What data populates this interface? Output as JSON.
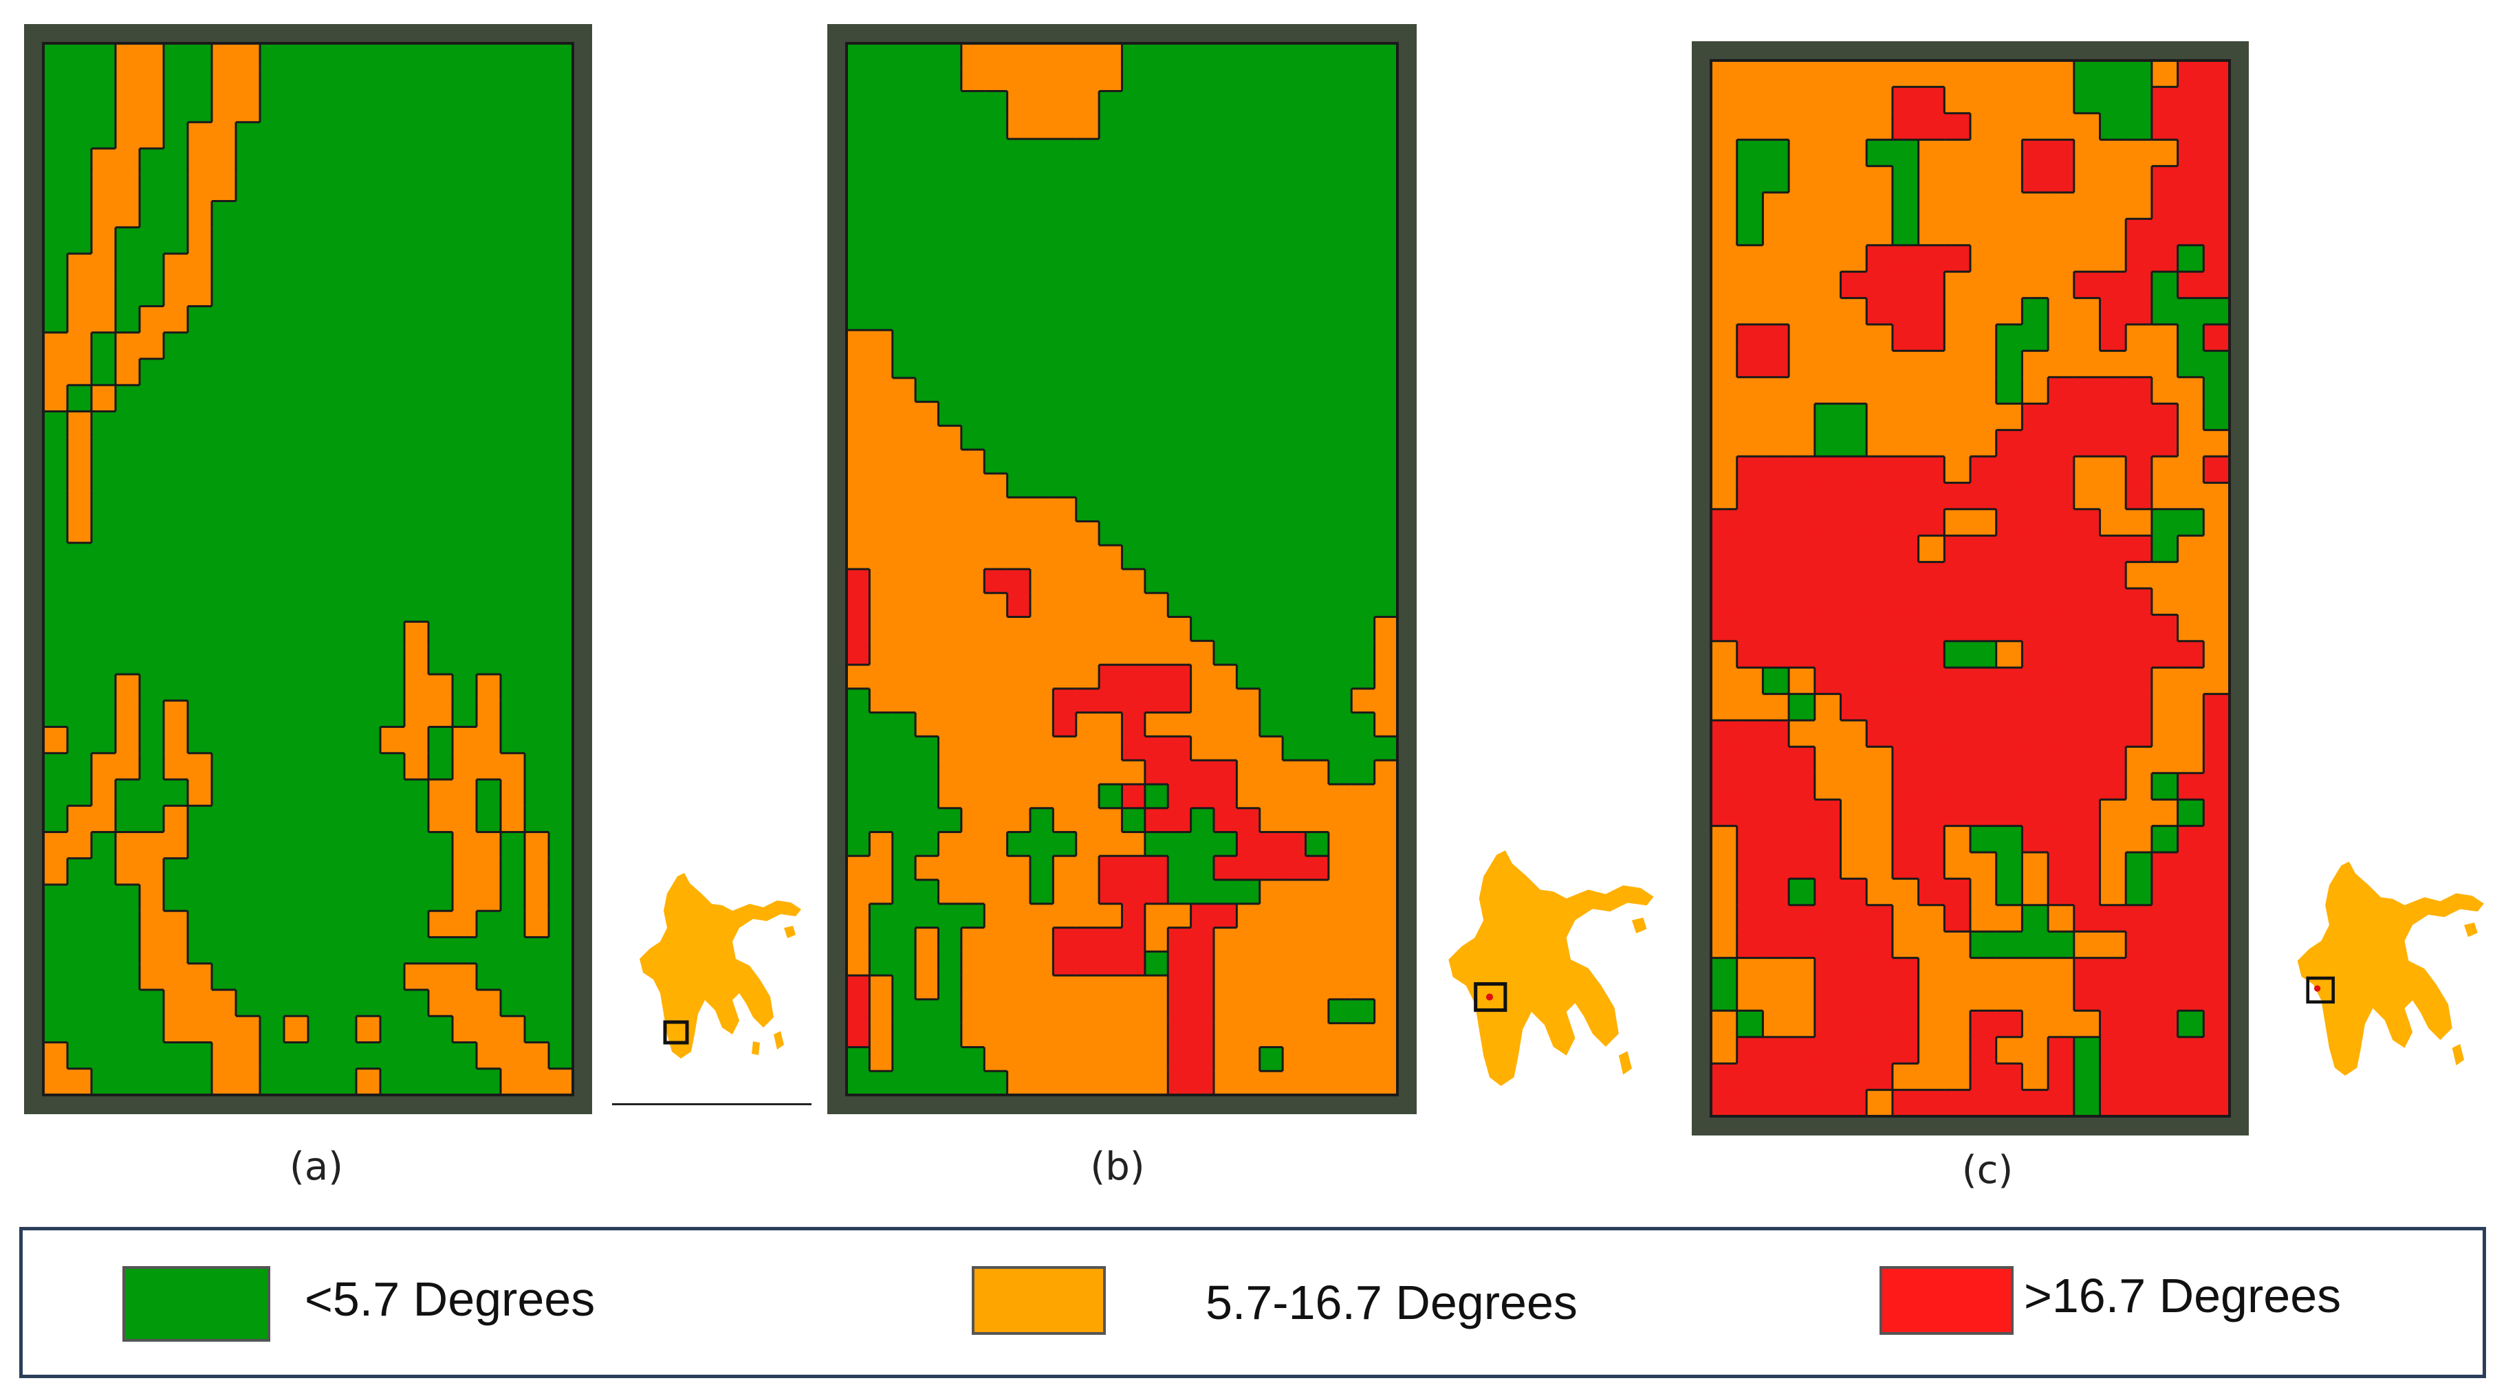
{
  "panels": [
    {
      "label": "(a)"
    },
    {
      "label": "(b)"
    },
    {
      "label": "(c)"
    }
  ],
  "legend": {
    "items": [
      {
        "label": "<5.7 Degrees",
        "color": "#009a0a"
      },
      {
        "label": "5.7-16.7 Degrees",
        "color": "#ffa500"
      },
      {
        "label": ">16.7 Degrees",
        "color": "#ff1a1a"
      }
    ]
  },
  "colors": {
    "green": "#009a0a",
    "orange": "#ff8a00",
    "red": "#f21b1b",
    "inset_island": "#ffb000",
    "inset_marker": "#e01010",
    "frame": "#3f4a3a"
  },
  "grids": [
    {
      "name": "slope-map-a",
      "cols": 22,
      "rows": 40,
      "rows_data": [
        "GGGOOGGOOGGGGGGGGGGGGG",
        "GGGOOGGOOGGGGGGGGGGGGG",
        "GGGOOGGOOGGGGGGGGGGGGG",
        "GGGOOGOOGGGGGGGGGGGGGG",
        "GGOOGGOOGGGGGGGGGGGGGG",
        "GGOOGGOOGGGGGGGGGGGGGG",
        "GGOOGGOGGGGGGGGGGGGGGG",
        "GGOGGGOGGGGGGGGGGGGGGG",
        "GOOGGOOGGGGGGGGGGGGGGG",
        "GOOGGOOGGGGGGGGGGGGGGG",
        "GOOGOOGGGGGGGGGGGGGGGG",
        "OOGOOGGGGGGGGGGGGGGGGG",
        "OOGOGGGGGGGGGGGGGGGGGG",
        "OGOGGGGGGGGGGGGGGGGGGG",
        "GOGGGGGGGGGGGGGGGGGGGG",
        "GOGGGGGGGGGGGGGGGGGGGG",
        "GOGGGGGGGGGGGGGGGGGGGG",
        "GOGGGGGGGGGGGGGGGGGGGG",
        "GOGGGGGGGGGGGGGGGGGGGG",
        "GGGGGGGGGGGGGGGGGGGGGG",
        "GGGGGGGGGGGGGGGGGGGGGG",
        "GGGGGGGGGGGGGGGGGGGGGG",
        "GGGGGGGGGGGGGGGOGGGGGG",
        "GGGGGGGGGGGGGGGOGGGGGG",
        "GGGOGGGGGGGGGGGOOGOGGG",
        "GGGOGOGGGGGGGGGOOGOGGG",
        "OGGOGOGGGGGGGGOOGOOGGG",
        "GGOOGOOGGGGGGGGOGOOOGG",
        "GGOGGGOGGGGGGGGGOOGOGG",
        "GOOGGOGGGGGGGGGGOOGOGG",
        "OOGOOOGGGGGGGGGGGOOGOG",
        "OGGOOGGGGGGGGGGGGOOGOG",
        "GGGGOGGGGGGGGGGGGOOGOG",
        "GGGGOOGGGGGGGGGGOOGGOG",
        "GGGGOOGGGGGGGGGGGGGGGG",
        "GGGGOOOGGGGGGGGOOOGGGG",
        "GGGGGOOOGGGGGGGGOOOGGG",
        "GGGGGOOOOGOGGOGGGOOOGG",
        "OGGGGGGOOGGGGGGGGGOOOG",
        "OOGGGGGOOGGGGOGGGGGOOO"
      ]
    },
    {
      "name": "slope-map-b",
      "cols": 24,
      "rows": 44,
      "rows_data": [
        "GGGGGOOOOOOOGGGGGGGGGGGG",
        "GGGGGOOOOOOOGGGGGGGGGGGG",
        "GGGGGGGOOOOGGGGGGGGGGGGG",
        "GGGGGGGOOOOGGGGGGGGGGGGG",
        "GGGGGGGGGGGGGGGGGGGGGGGG",
        "GGGGGGGGGGGGGGGGGGGGGGGG",
        "GGGGGGGGGGGGGGGGGGGGGGGG",
        "GGGGGGGGGGGGGGGGGGGGGGGG",
        "GGGGGGGGGGGGGGGGGGGGGGGG",
        "GGGGGGGGGGGGGGGGGGGGGGGG",
        "GGGGGGGGGGGGGGGGGGGGGGGG",
        "GGGGGGGGGGGGGGGGGGGGGGGG",
        "OOGGGGGGGGGGGGGGGGGGGGGG",
        "OOGGGGGGGGGGGGGGGGGGGGGG",
        "OOOGGGGGGGGGGGGGGGGGGGGG",
        "OOOOGGGGGGGGGGGGGGGGGGGG",
        "OOOOOGGGGGGGGGGGGGGGGGGG",
        "OOOOOOGGGGGGGGGGGGGGGGGG",
        "OOOOOOOGGGGGGGGGGGGGGGGG",
        "OOOOOOOOOOGGGGGGGGGGGGGG",
        "OOOOOOOOOOOGGGGGGGGGGGGG",
        "OOOOOOOOOOOOGGGGGGGGGGGG",
        "ROOOOORROOOOOGGGGGGGGGGG",
        "ROOOOOOROOOOOOGGGGGGGGGG",
        "ROOOOOOOOOOOOOOGGGGGGGGO",
        "ROOOOOOOOOOOOOOOGGGGGGGO",
        "OOOOOOOOOOORRRROOGGGGGGO",
        "GOOOOOOOORRRRRROOOGGGGOO",
        "GGGOOOOOOROOROOOOOGGGGGO",
        "GGGGOOOOOOOORRROOOOGGGGG",
        "GGGGOOOOOOOOORRRROOOOGGO",
        "GGGGOOOOOOOGRGRRROOOOOOO",
        "GGGGGOOOGOOOGRRGRROOOOOO",
        "GOGGOOOGGGOOOGGGGRRRGOOO",
        "OOGOOOOOGOORRRGGRRRRROOO",
        "OOGGOOOOGOORRRGGGGOOOOOO",
        "OGGGGGOOOOOOROORROOOOOOO",
        "OGGOGOOOORRRRORROOOOOOOO",
        "OGGOGOOOORRRRGRROOOOOOOO",
        "ROGOGOOOOOOOOORROOOOOOOO",
        "ROGGGOOOOOOOOORROOOOOGGO",
        "ROGGGOOOOOOOOORROOOOOOOO",
        "GOGGGGOOOOOOOORROOGOOOOO",
        "GGGGGGGOOOOOOORROOOOOOOO"
      ]
    },
    {
      "name": "slope-map-c",
      "cols": 20,
      "rows": 40,
      "rows_data": [
        "OOOOOOOOOOOOOOGGGORR",
        "OOOOOOORROOOOOGGGRRR",
        "OOOOOOORRROOOOOGGRRR",
        "OGGOOOGGOOOORROOOORR",
        "OGGOOOOGOOOORROOORRR",
        "OGOOOOOGOOOOOOOOORRR",
        "OGOOOOOGOOOOOOOORRRR",
        "OOOOOORRRROOOOOORRGR",
        "OOOOORRRROOOOORRRGRR",
        "OOOOOORRROOOGOORRGGG",
        "ORROOOORROOGGOOROOGR",
        "ORROOOOOOOOGOOOOOOGG",
        "OOOOOOOOOOOGORRRROOG",
        "OOOOGGOOOOOORRRRRROG",
        "OOOOGGOOOOORRRRRRROO",
        "ORRRRRRRRORRRROOROOR",
        "ORRRRRRRRRRRRROOROOO",
        "RRRRRRRRROORRRROOGGO",
        "RRRRRRRRORRRRRRRRGOO",
        "RRRRRRRRRRRRRRRROOOO",
        "RRRRRRRRRRRRRRRRROOO",
        "RRRRRRRRRRRRRRRRRROO",
        "ORRRRRRRRGGORRRRRRRO",
        "OOGORRRRRRRRRRRRROOO",
        "OOOGORRRRRRRRRRRROOR",
        "RRROOORRRRRRRRRRROOR",
        "RRRROOORRRRRRRRROOOR",
        "RRRROOORRRRRRRRROGRR",
        "RRRRROORRRRRRRROOOGR",
        "ORRRROORROGGRRROOGRR",
        "ORRRROORROOGORROGRRR",
        "ORRGRROORROGORROGRRR",
        "ORRRRRROOROOGORRRRRR",
        "ORRRRRROOOGGGGOORRRR",
        "GOOORRRROOOOOORRRRRR",
        "GOOORRRROOOOOORRRRRR",
        "OGOORRRROORROOORRRGR",
        "ORRRRRRROOROORGRRRRR",
        "RRRRRRROOORRORGRRRRR",
        "RRRRRRORRRRRRRGRRRRR"
      ]
    }
  ]
}
